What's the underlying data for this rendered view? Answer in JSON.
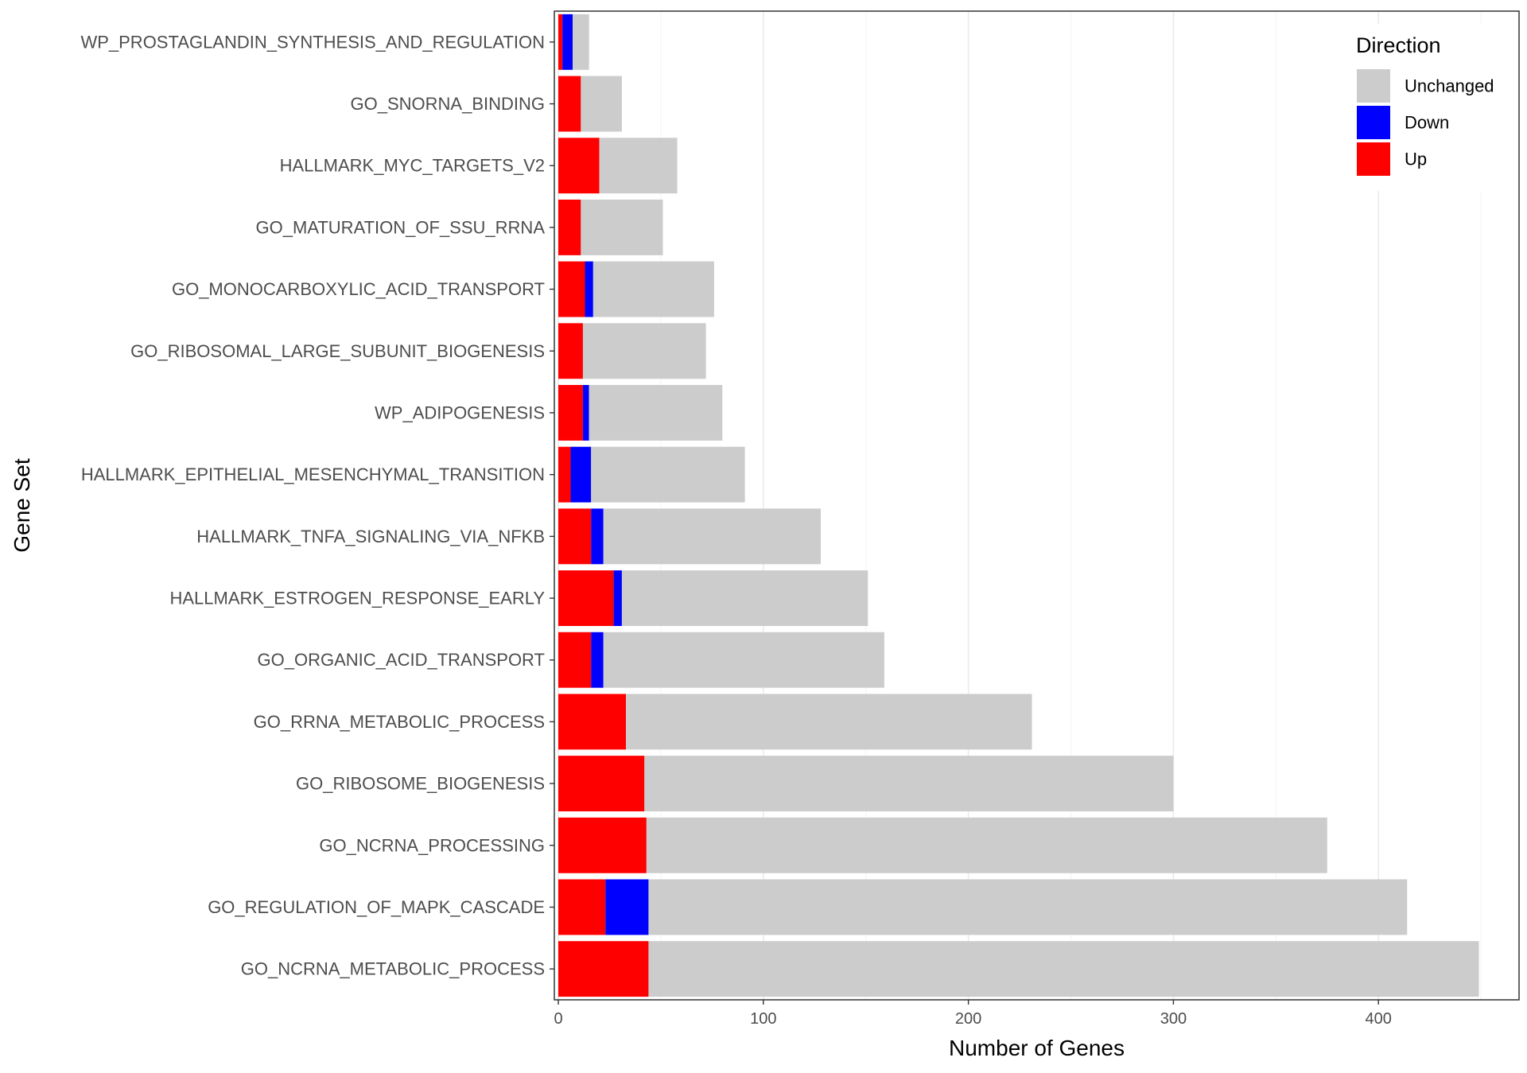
{
  "chart_data": {
    "type": "bar",
    "orientation": "horizontal",
    "stacked": true,
    "xlabel": "Number of Genes",
    "ylabel": "Gene Set",
    "xlim": [
      0,
      470
    ],
    "x_ticks": [
      0,
      100,
      200,
      300,
      400
    ],
    "grid": true,
    "legend": {
      "title": "Direction",
      "position": "top-right",
      "entries": [
        "Unchanged",
        "Down",
        "Up"
      ]
    },
    "colors": {
      "Up": "#ff0000",
      "Down": "#0000ff",
      "Unchanged": "#cccccc",
      "grid_major": "#ebebeb",
      "grid_minor": "#f5f5f5",
      "panel_border": "#333333"
    },
    "categories": [
      "WP_PROSTAGLANDIN_SYNTHESIS_AND_REGULATION",
      "GO_SNORNA_BINDING",
      "HALLMARK_MYC_TARGETS_V2",
      "GO_MATURATION_OF_SSU_RRNA",
      "GO_MONOCARBOXYLIC_ACID_TRANSPORT",
      "GO_RIBOSOMAL_LARGE_SUBUNIT_BIOGENESIS",
      "WP_ADIPOGENESIS",
      "HALLMARK_EPITHELIAL_MESENCHYMAL_TRANSITION",
      "HALLMARK_TNFA_SIGNALING_VIA_NFKB",
      "HALLMARK_ESTROGEN_RESPONSE_EARLY",
      "GO_ORGANIC_ACID_TRANSPORT",
      "GO_RRNA_METABOLIC_PROCESS",
      "GO_RIBOSOME_BIOGENESIS",
      "GO_NCRNA_PROCESSING",
      "GO_REGULATION_OF_MAPK_CASCADE",
      "GO_NCRNA_METABOLIC_PROCESS"
    ],
    "series": [
      {
        "name": "Up",
        "values": [
          2,
          11,
          20,
          11,
          13,
          12,
          12,
          6,
          16,
          27,
          16,
          33,
          42,
          43,
          23,
          44
        ]
      },
      {
        "name": "Down",
        "values": [
          5,
          0,
          0,
          0,
          4,
          0,
          3,
          10,
          6,
          4,
          6,
          0,
          0,
          0,
          21,
          0
        ]
      },
      {
        "name": "Unchanged",
        "values": [
          8,
          20,
          38,
          40,
          59,
          60,
          65,
          75,
          106,
          120,
          137,
          198,
          258,
          332,
          370,
          405
        ]
      }
    ]
  }
}
